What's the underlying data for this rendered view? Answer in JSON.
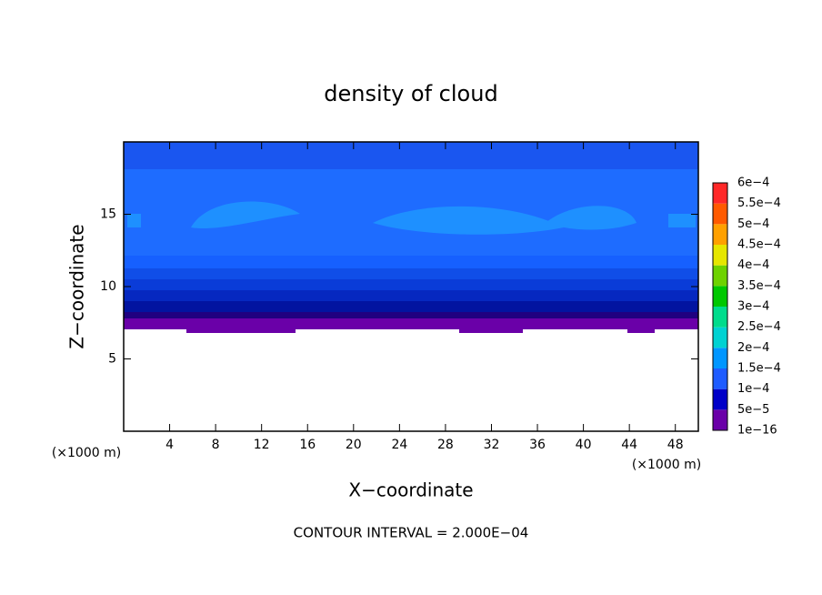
{
  "chart_data": {
    "type": "contour",
    "title": "density of cloud",
    "xlabel": "X−coordinate",
    "ylabel": "Z−coordinate",
    "x_unit": "(×1000 m)",
    "xlim": [
      0,
      50
    ],
    "xticks": [
      4,
      8,
      12,
      16,
      20,
      24,
      28,
      32,
      36,
      40,
      44,
      48
    ],
    "ylim": [
      0,
      20
    ],
    "yticks": [
      5,
      10,
      15
    ],
    "colorbar": {
      "levels": [
        {
          "value": 1e-16,
          "label": "1e−16"
        },
        {
          "value": 5e-05,
          "label": "5e−5"
        },
        {
          "value": 0.0001,
          "label": "1e−4"
        },
        {
          "value": 0.00015,
          "label": "1.5e−4"
        },
        {
          "value": 0.0002,
          "label": "2e−4"
        },
        {
          "value": 0.00025,
          "label": "2.5e−4"
        },
        {
          "value": 0.0003,
          "label": "3e−4"
        },
        {
          "value": 0.00035,
          "label": "3.5e−4"
        },
        {
          "value": 0.0004,
          "label": "4e−4"
        },
        {
          "value": 0.00045,
          "label": "4.5e−4"
        },
        {
          "value": 0.0005,
          "label": "5e−4"
        },
        {
          "value": 0.00055,
          "label": "5.5e−4"
        },
        {
          "value": 0.0006,
          "label": "6e−4"
        }
      ],
      "colors": [
        "#6a00a8",
        "#0000c8",
        "#1e5cff",
        "#0096ff",
        "#00d2d2",
        "#00dc8c",
        "#00c800",
        "#6ed200",
        "#e6e600",
        "#ffa000",
        "#ff5a00",
        "#ff2828",
        "#ff8c8c"
      ]
    },
    "note": "CONTOUR INTERVAL = 2.000E−04"
  }
}
